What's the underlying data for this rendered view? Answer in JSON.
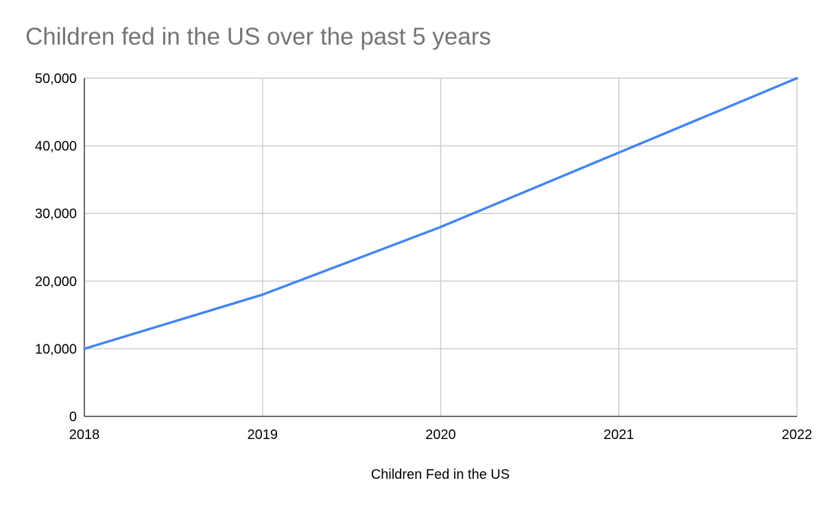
{
  "chart_data": {
    "type": "line",
    "title": "Children fed in the US over the past 5 years",
    "xlabel": "Children Fed in the US",
    "ylabel": "",
    "categories": [
      "2018",
      "2019",
      "2020",
      "2021",
      "2022"
    ],
    "series": [
      {
        "values": [
          10000,
          18000,
          28000,
          39000,
          50000
        ],
        "color": "#4285f4"
      }
    ],
    "ylim": [
      0,
      50000
    ],
    "yticks": [
      "0",
      "10,000",
      "20,000",
      "30,000",
      "40,000",
      "50,000"
    ],
    "grid": true,
    "legend": "none"
  }
}
